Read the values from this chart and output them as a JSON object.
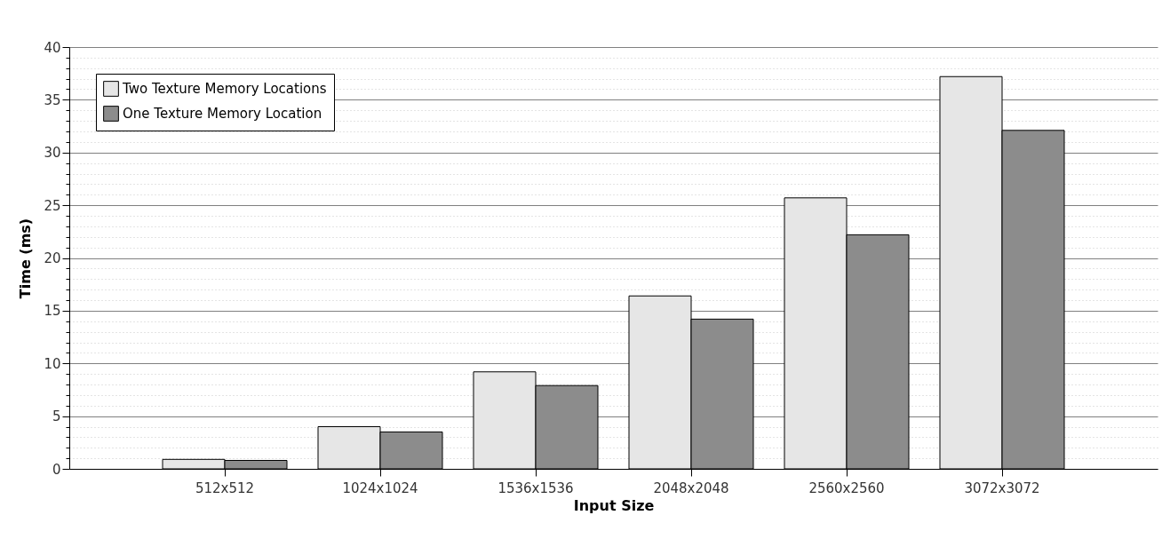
{
  "chart_data": {
    "type": "bar",
    "xlabel": "Input Size",
    "ylabel": "Time (ms)",
    "categories": [
      "512x512",
      "1024x1024",
      "1536x1536",
      "2048x2048",
      "2560x2560",
      "3072x3072"
    ],
    "series": [
      {
        "name": "Two Texture Memory Locations",
        "color": "#e6e6e6",
        "values": [
          0.9,
          4.0,
          9.2,
          16.4,
          25.7,
          37.2
        ]
      },
      {
        "name": "One Texture Memory Location",
        "color": "#8c8c8c",
        "values": [
          0.8,
          3.5,
          7.9,
          14.2,
          22.2,
          32.1
        ]
      }
    ],
    "ylim": [
      0,
      40
    ],
    "yticks": [
      0,
      {
        "value": 1,
        "label": null
      },
      {
        "value": 2,
        "label": null
      },
      {
        "value": 3,
        "label": null
      },
      {
        "value": 4,
        "label": null
      },
      5,
      {
        "value": 6,
        "label": null
      },
      {
        "value": 7,
        "label": null
      },
      {
        "value": 8,
        "label": null
      },
      {
        "value": 9,
        "label": null
      },
      10,
      {
        "value": 11,
        "label": null
      },
      {
        "value": 12,
        "label": null
      },
      {
        "value": 13,
        "label": null
      },
      {
        "value": 14,
        "label": null
      },
      15,
      {
        "value": 16,
        "label": null
      },
      {
        "value": 17,
        "label": null
      },
      {
        "value": 18,
        "label": null
      },
      {
        "value": 19,
        "label": null
      },
      20,
      {
        "value": 21,
        "label": null
      },
      {
        "value": 22,
        "label": null
      },
      {
        "value": 23,
        "label": null
      },
      {
        "value": 24,
        "label": null
      },
      25,
      {
        "value": 26,
        "label": null
      },
      {
        "value": 27,
        "label": null
      },
      {
        "value": 28,
        "label": null
      },
      {
        "value": 29,
        "label": null
      },
      30,
      {
        "value": 31,
        "label": null
      },
      {
        "value": 32,
        "label": null
      },
      {
        "value": 33,
        "label": null
      },
      {
        "value": 34,
        "label": null
      },
      35,
      {
        "value": 36,
        "label": null
      },
      {
        "value": 37,
        "label": null
      },
      {
        "value": 38,
        "label": null
      },
      {
        "value": 39,
        "label": null
      },
      40
    ],
    "grid": "y",
    "legend": "top left"
  }
}
